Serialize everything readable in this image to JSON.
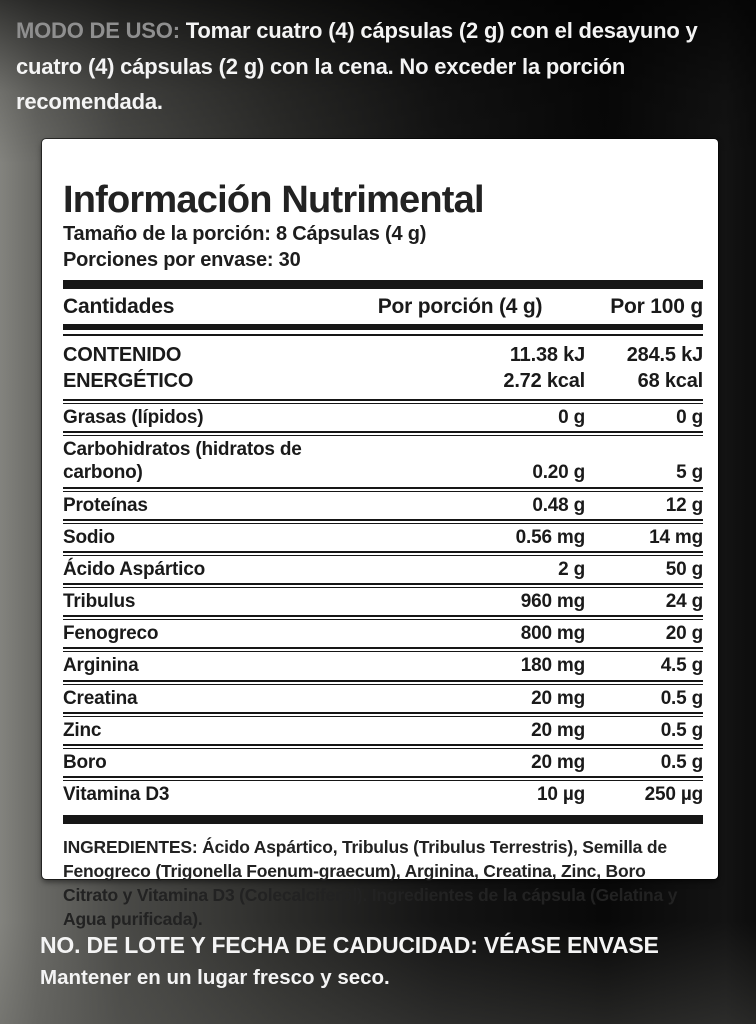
{
  "usage": {
    "prefix": "MODO DE USO:",
    "text": " Tomar cuatro (4) cápsulas (2 g) con el desayuno y cuatro (4) cápsulas (2 g) con la cena. No exceder la porción recomendada."
  },
  "panel": {
    "title": "Información Nutrimental",
    "serving_size": "Tamaño de la porción: 8 Cápsulas (4 g)",
    "servings_per_container": "Porciones por envase: 30",
    "table": {
      "headers": [
        "Cantidades",
        "Por porción (4 g)",
        "Por 100 g"
      ],
      "energy_row": {
        "label_lines": [
          "CONTENIDO",
          "ENERGÉTICO"
        ],
        "per_serving_lines": [
          "11.38 kJ",
          "2.72 kcal"
        ],
        "per_100g_lines": [
          "284.5 kJ",
          "68 kcal"
        ]
      },
      "rows": [
        {
          "label": "Grasas (lípidos)",
          "per_serving": "0 g",
          "per_100g": "0 g"
        },
        {
          "label": "Carbohidratos (hidratos de carbono)",
          "per_serving": "0.20 g",
          "per_100g": "5 g"
        },
        {
          "label": "Proteínas",
          "per_serving": "0.48 g",
          "per_100g": "12 g"
        },
        {
          "label": "Sodio",
          "per_serving": "0.56 mg",
          "per_100g": "14 mg"
        },
        {
          "label": "Ácido Aspártico",
          "per_serving": "2 g",
          "per_100g": "50 g"
        },
        {
          "label": "Tribulus",
          "per_serving": "960 mg",
          "per_100g": "24 g"
        },
        {
          "label": "Fenogreco",
          "per_serving": "800 mg",
          "per_100g": "20 g"
        },
        {
          "label": "Arginina",
          "per_serving": "180 mg",
          "per_100g": "4.5 g"
        },
        {
          "label": "Creatina",
          "per_serving": "20 mg",
          "per_100g": "0.5 g"
        },
        {
          "label": "Zinc",
          "per_serving": "20 mg",
          "per_100g": "0.5 g"
        },
        {
          "label": "Boro",
          "per_serving": "20 mg",
          "per_100g": "0.5 g"
        },
        {
          "label": "Vitamina D3",
          "per_serving": "10 µg",
          "per_100g": "250 µg"
        }
      ]
    },
    "ingredients": "INGREDIENTES: Ácido Aspártico, Tribulus (Tribulus Terrestris), Semilla de Fenogreco (Trigonella Foenum-graecum), Arginina, Creatina, Zinc, Boro Citrato y Vitamina D3 (Colecalciferol). Ingredientes de la cápsula (Gelatina y Agua purificada)."
  },
  "footer": {
    "lot": "NO. DE LOTE Y FECHA DE CADUCIDAD: VÉASE ENVASE",
    "storage": "Mantener en un lugar fresco y seco."
  },
  "colors": {
    "panel_bg": "#ffffff",
    "ink": "#1a1a1a",
    "rule": "#161616",
    "usage_prefix": "#8f8f8f",
    "light_text": "#f4f4f4"
  }
}
